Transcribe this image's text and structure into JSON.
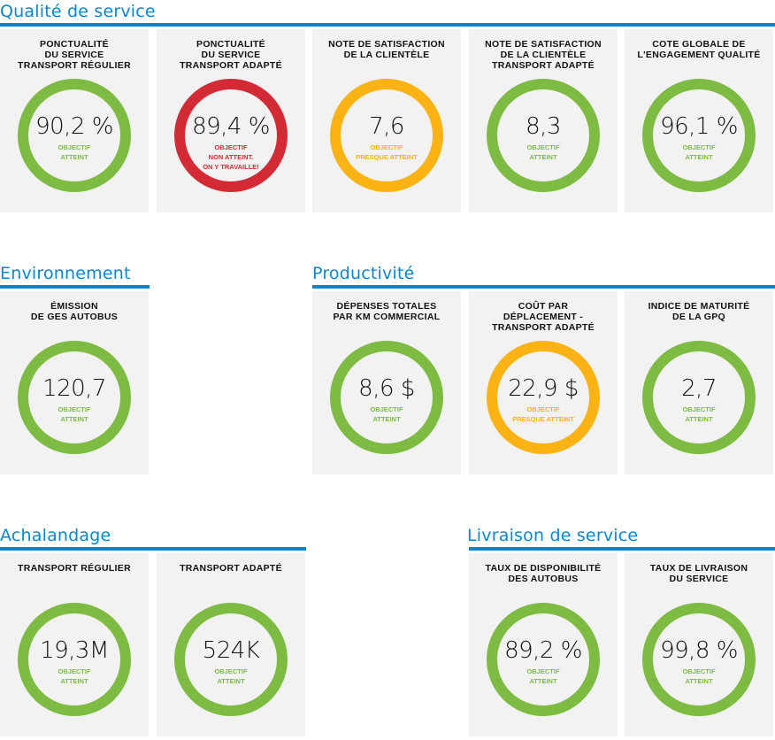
{
  "colors": {
    "accent": "#0a86cf",
    "atteint": "#7dbb42",
    "presque": "#fbb313",
    "non_atteint": "#d42a35",
    "card_bg": "#f2f2f2"
  },
  "sections": [
    {
      "title": "Qualité de service",
      "cards": [
        {
          "title": [
            "PONCTUALITÉ",
            "DU SERVICE",
            "TRANSPORT RÉGULIER"
          ],
          "value": "90,2 %",
          "status": [
            "OBJECTIF",
            "ATTEINT"
          ],
          "state": "atteint"
        },
        {
          "title": [
            "PONCTUALITÉ",
            "DU SERVICE",
            "TRANSPORT ADAPTÉ"
          ],
          "value": "89,4 %",
          "status": [
            "OBJECTIF",
            "NON ATTEINT.",
            "ON Y TRAVAILLE!"
          ],
          "state": "non_atteint"
        },
        {
          "title": [
            "NOTE DE SATISFACTION",
            "DE LA CLIENTÈLE"
          ],
          "value": "7,6",
          "status": [
            "OBJECTIF",
            "PRESQUE ATTEINT"
          ],
          "state": "presque"
        },
        {
          "title": [
            "NOTE DE SATISFACTION",
            "DE LA CLIENTÈLE",
            "TRANSPORT ADAPTÉ"
          ],
          "value": "8,3",
          "status": [
            "OBJECTIF",
            "ATTEINT"
          ],
          "state": "atteint"
        },
        {
          "title": [
            "COTE GLOBALE DE",
            "L'ENGAGEMENT QUALITÉ"
          ],
          "value": "96,1 %",
          "status": [
            "OBJECTIF",
            "ATTEINT"
          ],
          "state": "atteint"
        }
      ]
    },
    {
      "title": "Environnement",
      "cards": [
        {
          "title": [
            "ÉMISSION",
            "DE GES AUTOBUS"
          ],
          "value": "120,7",
          "status": [
            "OBJECTIF",
            "ATTEINT"
          ],
          "state": "atteint"
        }
      ]
    },
    {
      "title": "Productivité",
      "cards": [
        {
          "title": [
            "DÉPENSES TOTALES",
            "PAR KM COMMERCIAL"
          ],
          "value": "8,6 $",
          "status": [
            "OBJECTIF",
            "ATTEINT"
          ],
          "state": "atteint"
        },
        {
          "title": [
            "COÛT PAR",
            "DÉPLACEMENT -",
            "TRANSPORT ADAPTÉ"
          ],
          "value": "22,9 $",
          "status": [
            "OBJECTIF",
            "PRESQUE ATTEINT"
          ],
          "state": "presque"
        },
        {
          "title": [
            "INDICE DE MATURITÉ",
            "DE LA GPQ"
          ],
          "value": "2,7",
          "status": [
            "OBJECTIF",
            "ATTEINT"
          ],
          "state": "atteint"
        }
      ]
    },
    {
      "title": "Achalandage",
      "cards": [
        {
          "title": [
            "TRANSPORT RÉGULIER"
          ],
          "value": "19,3M",
          "status": [
            "OBJECTIF",
            "ATTEINT"
          ],
          "state": "atteint"
        },
        {
          "title": [
            "TRANSPORT ADAPTÉ"
          ],
          "value": "524K",
          "status": [
            "OBJECTIF",
            "ATTEINT"
          ],
          "state": "atteint"
        }
      ]
    },
    {
      "title": "Livraison de service",
      "cards": [
        {
          "title": [
            "TAUX DE DISPONIBILITÉ",
            "DES AUTOBUS"
          ],
          "value": "89,2 %",
          "status": [
            "OBJECTIF",
            "ATTEINT"
          ],
          "state": "atteint"
        },
        {
          "title": [
            "TAUX DE LIVRAISON",
            "DU SERVICE"
          ],
          "value": "99,8 %",
          "status": [
            "OBJECTIF",
            "ATTEINT"
          ],
          "state": "atteint"
        }
      ]
    }
  ]
}
